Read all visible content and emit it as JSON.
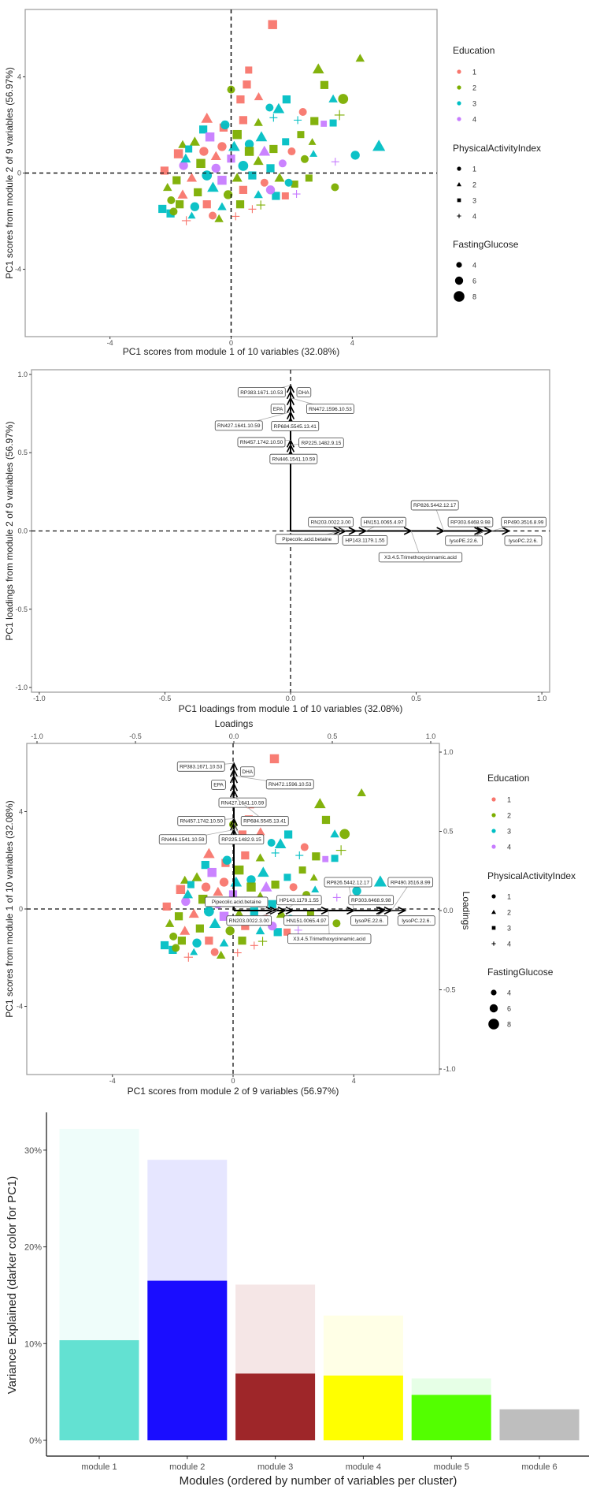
{
  "legend": {
    "education": {
      "title": "Education",
      "levels": [
        "1",
        "2",
        "3",
        "4"
      ],
      "colors": [
        "#F8766D",
        "#7CAE00",
        "#00BFC4",
        "#C77CFF"
      ]
    },
    "physical_activity": {
      "title": "PhysicalActivityIndex",
      "levels": [
        "1",
        "2",
        "3",
        "4"
      ],
      "shapes": [
        "circle",
        "triangle",
        "square",
        "plus"
      ]
    },
    "fasting_glucose": {
      "title": "FastingGlucose",
      "levels": [
        4,
        6,
        8
      ]
    }
  },
  "chart_data": [
    {
      "type": "scatter",
      "xlabel": "PC1 scores from module 1 of 10 variables (32.08%)",
      "ylabel": "PC1 scores from module 2 of 9 variables (56.97%)",
      "xlim": [
        -6.8,
        6.8
      ],
      "ylim": [
        -6.8,
        6.8
      ],
      "xticks": [
        -4,
        0,
        4
      ],
      "yticks": [
        -4,
        0,
        4
      ],
      "reference_lines": "dashed at x=0 and y=0",
      "legend_placement": "right",
      "point_fields": [
        "x",
        "y",
        "Education",
        "PhysicalActivityIndex",
        "FastingGlucose"
      ],
      "points": [
        [
          1.37,
          6.17,
          1,
          3,
          7
        ],
        [
          4.26,
          4.77,
          2,
          2,
          5
        ],
        [
          2.88,
          4.32,
          2,
          2,
          7
        ],
        [
          0.58,
          4.28,
          1,
          3,
          5
        ],
        [
          0.52,
          3.68,
          1,
          3,
          6
        ],
        [
          3.08,
          3.66,
          2,
          3,
          6
        ],
        [
          0,
          3.47,
          2,
          1,
          5
        ],
        [
          0.31,
          3.06,
          1,
          3,
          6
        ],
        [
          0.91,
          3.17,
          1,
          2,
          5
        ],
        [
          1.83,
          3.06,
          3,
          3,
          6
        ],
        [
          3.37,
          3.08,
          3,
          2,
          5
        ],
        [
          3.7,
          3.08,
          2,
          1,
          7
        ],
        [
          1.27,
          2.72,
          3,
          1,
          5
        ],
        [
          1.57,
          2.67,
          3,
          2,
          7
        ],
        [
          2.37,
          2.54,
          1,
          1,
          5
        ],
        [
          3.58,
          2.41,
          2,
          4,
          7
        ],
        [
          2.75,
          2.16,
          2,
          3,
          6
        ],
        [
          3.06,
          2.05,
          4,
          3,
          4
        ],
        [
          3.37,
          2.08,
          3,
          3,
          5
        ],
        [
          -0.8,
          2.27,
          1,
          2,
          7
        ],
        [
          -0.92,
          1.81,
          3,
          3,
          6
        ],
        [
          -0.25,
          1.89,
          1,
          3,
          6
        ],
        [
          4.88,
          1.12,
          3,
          2,
          8
        ],
        [
          4.1,
          0.74,
          3,
          1,
          6
        ],
        [
          3.44,
          0.47,
          4,
          4,
          5
        ],
        [
          2.68,
          1.29,
          2,
          2,
          4
        ],
        [
          2.72,
          0.8,
          3,
          2,
          4
        ],
        [
          2.43,
          0.58,
          2,
          1,
          5
        ],
        [
          -1.74,
          0.8,
          1,
          3,
          7
        ],
        [
          -1.57,
          0.31,
          4,
          1,
          6
        ],
        [
          -1.6,
          1.18,
          2,
          2,
          5
        ],
        [
          3.43,
          -0.59,
          2,
          1,
          5
        ],
        [
          2.16,
          -0.87,
          4,
          4,
          5
        ],
        [
          2.57,
          -0.21,
          2,
          3,
          5
        ],
        [
          -2.27,
          -1.49,
          3,
          3,
          6
        ],
        [
          -2.0,
          -1.68,
          3,
          3,
          6
        ],
        [
          -1.48,
          -1.98,
          1,
          4,
          6
        ],
        [
          0.15,
          -1.8,
          1,
          4,
          5
        ],
        [
          -1.3,
          -1.77,
          3,
          2,
          4
        ],
        [
          -0.61,
          -1.77,
          1,
          1,
          5
        ],
        [
          -1.98,
          -1.13,
          2,
          1,
          5
        ],
        [
          1.79,
          -0.95,
          1,
          3,
          5
        ],
        [
          1.48,
          -0.95,
          3,
          3,
          6
        ],
        [
          0.98,
          -1.33,
          2,
          4,
          6
        ],
        [
          2.1,
          -0.46,
          2,
          3,
          5
        ],
        [
          -1.2,
          1.3,
          2,
          2,
          6
        ],
        [
          -0.7,
          1.5,
          4,
          3,
          7
        ],
        [
          -0.3,
          1.1,
          1,
          1,
          6
        ],
        [
          0.2,
          1.6,
          2,
          3,
          7
        ],
        [
          0.6,
          1.2,
          3,
          1,
          6
        ],
        [
          1.0,
          1.5,
          3,
          2,
          7
        ],
        [
          1.4,
          1.0,
          2,
          3,
          6
        ],
        [
          1.8,
          1.3,
          3,
          3,
          5
        ],
        [
          2.0,
          0.9,
          1,
          1,
          5
        ],
        [
          -1.5,
          0.6,
          3,
          2,
          6
        ],
        [
          -1.0,
          0.4,
          2,
          3,
          7
        ],
        [
          -0.5,
          0.7,
          1,
          2,
          6
        ],
        [
          0.0,
          0.6,
          4,
          3,
          6
        ],
        [
          0.4,
          0.3,
          3,
          1,
          7
        ],
        [
          0.9,
          0.5,
          2,
          2,
          6
        ],
        [
          1.3,
          0.2,
          3,
          3,
          6
        ],
        [
          1.7,
          0.4,
          4,
          1,
          5
        ],
        [
          -1.8,
          -0.3,
          2,
          3,
          6
        ],
        [
          -1.3,
          -0.2,
          1,
          2,
          6
        ],
        [
          -0.8,
          -0.1,
          3,
          1,
          7
        ],
        [
          -0.3,
          -0.3,
          4,
          3,
          7
        ],
        [
          0.2,
          -0.2,
          2,
          2,
          6
        ],
        [
          0.7,
          -0.1,
          3,
          3,
          6
        ],
        [
          1.1,
          -0.4,
          1,
          1,
          5
        ],
        [
          1.6,
          -0.2,
          2,
          2,
          6
        ],
        [
          -1.6,
          -0.9,
          1,
          2,
          6
        ],
        [
          -1.1,
          -0.8,
          2,
          3,
          6
        ],
        [
          -0.6,
          -0.6,
          3,
          2,
          7
        ],
        [
          -0.1,
          -0.9,
          2,
          1,
          6
        ],
        [
          0.4,
          -0.7,
          1,
          3,
          6
        ],
        [
          0.9,
          -0.9,
          3,
          2,
          5
        ],
        [
          1.3,
          -0.7,
          4,
          1,
          6
        ],
        [
          -1.7,
          -1.3,
          2,
          3,
          6
        ],
        [
          -1.2,
          -1.4,
          3,
          1,
          6
        ],
        [
          -0.8,
          -1.3,
          1,
          3,
          6
        ],
        [
          -0.3,
          -1.4,
          3,
          2,
          5
        ],
        [
          0.3,
          -1.3,
          2,
          3,
          6
        ],
        [
          0.7,
          -1.5,
          1,
          4,
          5
        ],
        [
          -0.2,
          2.0,
          3,
          1,
          6
        ],
        [
          0.4,
          2.2,
          1,
          3,
          6
        ],
        [
          0.9,
          2.1,
          2,
          2,
          5
        ],
        [
          1.4,
          2.3,
          3,
          4,
          5
        ],
        [
          -0.5,
          0.2,
          4,
          1,
          6
        ],
        [
          0.6,
          0.9,
          2,
          3,
          7
        ],
        [
          1.1,
          0.9,
          4,
          2,
          7
        ],
        [
          -1.4,
          1.0,
          3,
          3,
          5
        ],
        [
          -0.9,
          0.9,
          1,
          1,
          6
        ],
        [
          -2.1,
          -0.6,
          2,
          2,
          5
        ],
        [
          -2.2,
          0.1,
          1,
          3,
          6
        ],
        [
          2.3,
          1.6,
          2,
          3,
          5
        ],
        [
          2.2,
          2.2,
          3,
          4,
          5
        ],
        [
          1.9,
          -0.4,
          3,
          1,
          5
        ],
        [
          -0.4,
          -1.9,
          2,
          2,
          5
        ],
        [
          -1.9,
          -1.6,
          2,
          1,
          5
        ],
        [
          0.1,
          1.1,
          3,
          2,
          7
        ]
      ]
    },
    {
      "type": "scatter",
      "subtype": "loadings arrows",
      "xlabel": "PC1 loadings from module 1 of 10 variables (32.08%)",
      "ylabel": "PC1 loadings from module 2 of 9 variables (56.97%)",
      "xlim": [
        -1.03,
        1.03
      ],
      "ylim": [
        -1.03,
        1.03
      ],
      "xticks": [
        -1.0,
        -0.5,
        0.0,
        0.5,
        1.0
      ],
      "yticks": [
        -1.0,
        -0.5,
        0.0,
        0.5,
        1.0
      ],
      "xtick_labels": [
        "-1.0",
        "-0.5",
        "0.0",
        "0.5",
        "1.0"
      ],
      "ytick_labels": [
        "-1.0",
        "-0.5",
        "0.0",
        "0.5",
        "1.0"
      ],
      "loadings": [
        {
          "name": "RP383.1671.10.53",
          "x": 0,
          "y": 0.93
        },
        {
          "name": "DHA",
          "x": 0,
          "y": 0.89
        },
        {
          "name": "RN472.1596.10.53",
          "x": 0,
          "y": 0.85
        },
        {
          "name": "EPA",
          "x": 0,
          "y": 0.8
        },
        {
          "name": "RN427.1641.10.59",
          "x": 0,
          "y": 0.76
        },
        {
          "name": "RP684.5545.13.41",
          "x": 0,
          "y": 0.72
        },
        {
          "name": "RN457.1742.10.50",
          "x": 0,
          "y": 0.58
        },
        {
          "name": "RP225.1482.9.15",
          "x": 0,
          "y": 0.55
        },
        {
          "name": "RN446.1541.10.59",
          "x": 0,
          "y": 0.51
        },
        {
          "name": "Pipecolic.acid.betaine",
          "x": 0.2,
          "y": 0
        },
        {
          "name": "RN203.0022.3.00",
          "x": 0.22,
          "y": 0
        },
        {
          "name": "HP143.1179.1.55",
          "x": 0.26,
          "y": 0
        },
        {
          "name": "HN151.0065.4.97",
          "x": 0.3,
          "y": 0
        },
        {
          "name": "X3.4.5.Trimethoxycinnamic.acid",
          "x": 0.48,
          "y": 0
        },
        {
          "name": "RP826.5442.12.17",
          "x": 0.61,
          "y": 0
        },
        {
          "name": "RP303.6468.9.98",
          "x": 0.76,
          "y": 0
        },
        {
          "name": "lysoPE.22.6.",
          "x": 0.77,
          "y": 0
        },
        {
          "name": "RP490.3516.8.99",
          "x": 0.8,
          "y": 0
        },
        {
          "name": "lysoPC.22.6.",
          "x": 0.87,
          "y": 0
        }
      ]
    },
    {
      "type": "scatter",
      "subtype": "biplot",
      "xlabel": "PC1 scores from module 2 of 9 variables (56.97%)",
      "ylabel": "PC1 scores from module 1 of 10 variables (32.08%)",
      "secondary_xlabel": "Loadings",
      "secondary_ylabel": "Loadings",
      "xlim": [
        -6.84,
        6.84
      ],
      "ylim": [
        -6.8,
        6.8
      ],
      "xticks": [
        -4,
        0,
        4
      ],
      "yticks": [
        -4,
        0,
        4
      ],
      "secondary_xticks": [
        "-1.0",
        "-0.5",
        "0.0",
        "0.5",
        "1.0"
      ],
      "secondary_yticks": [
        "1.0",
        "0.5",
        "0.0",
        "-0.5",
        "-1.0"
      ],
      "legend_placement": "right"
    },
    {
      "type": "bar",
      "xlabel": "Modules (ordered by number of variables per cluster)",
      "ylabel": "Variance Explained (darker color for PC1)",
      "categories": [
        "module 1",
        "module 2",
        "module 3",
        "module 4",
        "module 5",
        "module 6"
      ],
      "series": [
        {
          "values": [
            32.2,
            29.0,
            16.1,
            12.9,
            6.4,
            3.2
          ]
        },
        {
          "values": [
            10.35,
            16.5,
            6.9,
            6.7,
            4.7,
            3.2
          ]
        }
      ],
      "colors_total": [
        "#EFFDFA",
        "#E6E6FF",
        "#F5E6E6",
        "#FFFFE6",
        "#E6FFE6",
        "#BEBEBE"
      ],
      "colors_pc1": [
        "#63E1D2",
        "#1A0DFF",
        "#9E2629",
        "#FFFF00",
        "#53FF00",
        "#BEBEBE"
      ],
      "yticks": [
        "0%",
        "10%",
        "20%",
        "30%"
      ],
      "ylim": [
        0,
        33
      ]
    }
  ]
}
